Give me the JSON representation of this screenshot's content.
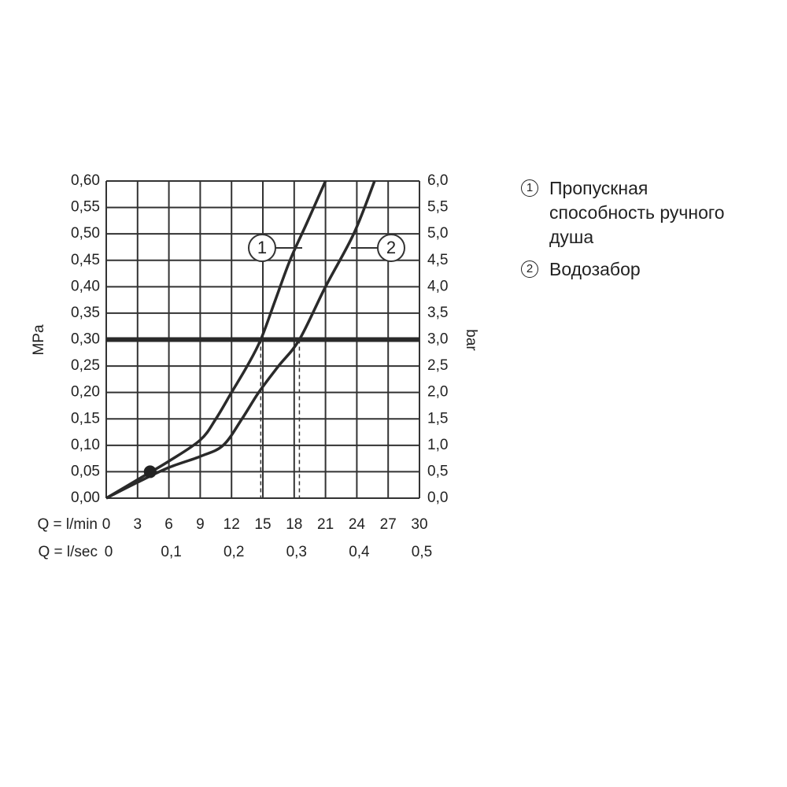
{
  "chart_data": {
    "type": "line",
    "xlabel": "Q = l/min",
    "x2label": "Q = l/sec",
    "ylabel": "MPa",
    "y2label": "bar",
    "xlim": [
      0,
      30
    ],
    "xticks": [
      0,
      3,
      6,
      9,
      12,
      15,
      18,
      21,
      24,
      27,
      30
    ],
    "x2lim": [
      0,
      0.5
    ],
    "x2ticks": [
      0,
      {
        "value": 0.1,
        "label": "0,1"
      },
      {
        "value": 0.2,
        "label": "0,2"
      },
      {
        "value": 0.3,
        "label": "0,3"
      },
      {
        "value": 0.4,
        "label": "0,4"
      },
      {
        "value": 0.5,
        "label": "0,5"
      }
    ],
    "ylim": [
      0,
      0.6
    ],
    "yticks": [
      {
        "value": 0,
        "label": "0,00"
      },
      {
        "value": 0.05,
        "label": "0,05"
      },
      {
        "value": 0.1,
        "label": "0,10"
      },
      {
        "value": 0.15,
        "label": "0,15"
      },
      {
        "value": 0.2,
        "label": "0,20"
      },
      {
        "value": 0.25,
        "label": "0,25"
      },
      {
        "value": 0.3,
        "label": "0,30"
      },
      {
        "value": 0.35,
        "label": "0,35"
      },
      {
        "value": 0.4,
        "label": "0,40"
      },
      {
        "value": 0.45,
        "label": "0,45"
      },
      {
        "value": 0.5,
        "label": "0,50"
      },
      {
        "value": 0.55,
        "label": "0,55"
      },
      {
        "value": 0.6,
        "label": "0,60"
      }
    ],
    "y2lim": [
      0,
      6
    ],
    "y2ticks": [
      {
        "value": 0,
        "label": "0,0"
      },
      {
        "value": 0.5,
        "label": "0,5"
      },
      {
        "value": 1,
        "label": "1,0"
      },
      {
        "value": 1.5,
        "label": "1,5"
      },
      {
        "value": 2,
        "label": "2,0"
      },
      {
        "value": 2.5,
        "label": "2,5"
      },
      {
        "value": 3,
        "label": "3,0"
      },
      {
        "value": 3.5,
        "label": "3,5"
      },
      {
        "value": 4,
        "label": "4,0"
      },
      {
        "value": 4.5,
        "label": "4,5"
      },
      {
        "value": 5,
        "label": "5,0"
      },
      {
        "value": 5.5,
        "label": "5,5"
      },
      {
        "value": 6,
        "label": "6,0"
      }
    ],
    "grid": true,
    "series": [
      {
        "name": "Пропускная способность ручного душа",
        "marker": "1",
        "color": "#2a2a2a",
        "x": [
          0,
          3,
          6,
          9,
          10.5,
          12,
          13.5,
          14.8,
          16.2,
          17.6,
          19.2,
          21
        ],
        "values": [
          0,
          0.035,
          0.07,
          0.11,
          0.15,
          0.2,
          0.25,
          0.3,
          0.375,
          0.45,
          0.52,
          0.6
        ]
      },
      {
        "name": "Водозабор",
        "marker": "2",
        "color": "#2a2a2a",
        "x": [
          0,
          3,
          6,
          9,
          11.2,
          13,
          14.6,
          16.5,
          18.5,
          21,
          23.7,
          25.7
        ],
        "values": [
          0,
          0.03,
          0.058,
          0.079,
          0.1,
          0.15,
          0.2,
          0.25,
          0.3,
          0.4,
          0.5,
          0.6
        ]
      }
    ],
    "reference_line": {
      "y": 0.3,
      "drop_x": [
        14.8,
        18.5
      ]
    },
    "point": {
      "x": 4.2,
      "y": 0.05
    }
  }
}
